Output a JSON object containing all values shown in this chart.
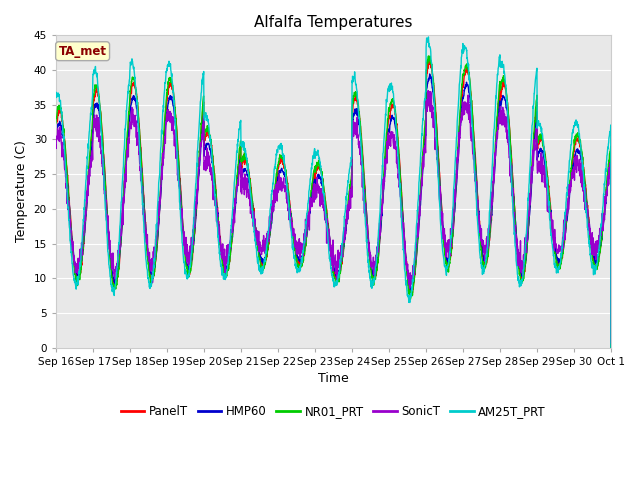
{
  "title": "Alfalfa Temperatures",
  "xlabel": "Time",
  "ylabel": "Temperature (C)",
  "ylim": [
    0,
    45
  ],
  "yticks": [
    0,
    5,
    10,
    15,
    20,
    25,
    30,
    35,
    40,
    45
  ],
  "annotation_text": "TA_met",
  "annotation_color": "#8B0000",
  "annotation_bg": "#FFFFCC",
  "annotation_edge": "#AAAAAA",
  "fig_bg": "#FFFFFF",
  "plot_bg": "#E8E8E8",
  "series": [
    "PanelT",
    "HMP60",
    "NR01_PRT",
    "SonicT",
    "AM25T_PRT"
  ],
  "colors": [
    "#FF0000",
    "#0000CD",
    "#00CC00",
    "#9900CC",
    "#00CCCC"
  ],
  "linewidth": 1.0,
  "xtick_labels": [
    "Sep 16",
    "Sep 17",
    "Sep 18",
    "Sep 19",
    "Sep 20",
    "Sep 21",
    "Sep 22",
    "Sep 23",
    "Sep 24",
    "Sep 25",
    "Sep 26",
    "Sep 27",
    "Sep 28",
    "Sep 29",
    "Sep 30",
    "Oct 1"
  ],
  "n_days": 15,
  "peaks_base": [
    34,
    37,
    38,
    38,
    31,
    27,
    27,
    26,
    36,
    35,
    41,
    40,
    38,
    30,
    30
  ],
  "mins_base": [
    10,
    9,
    10,
    11,
    11,
    12,
    12,
    10,
    10,
    8,
    12,
    12,
    10,
    12,
    12
  ],
  "figsize": [
    6.4,
    4.8
  ],
  "dpi": 100
}
